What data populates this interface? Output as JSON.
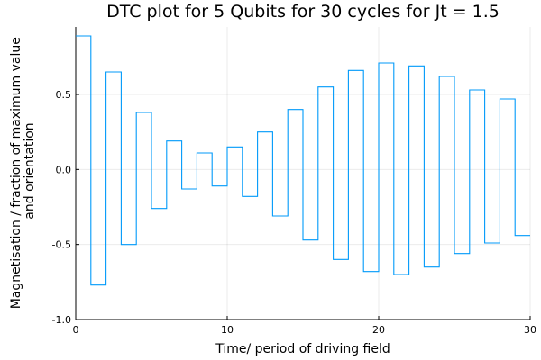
{
  "chart_data": {
    "type": "line",
    "step": "post",
    "title": "DTC plot for 5 Qubits for 30 cycles for Jt = 1.5",
    "xlabel": "Time/ period of driving field",
    "ylabel_lines": [
      "Magnetisation / fraction of maximum value",
      "and orientation"
    ],
    "xlim": [
      0,
      30
    ],
    "ylim": [
      -1.0,
      0.95
    ],
    "xticks": [
      0,
      10,
      20,
      30
    ],
    "xtick_labels": [
      "0",
      "10",
      "20",
      "30"
    ],
    "yticks": [
      -1.0,
      -0.5,
      0.0,
      0.5
    ],
    "ytick_labels": [
      "-1.0",
      "-0.5",
      "0.0",
      "0.5"
    ],
    "grid": true,
    "legend": "none",
    "series": [
      {
        "color": "#009AFA",
        "x": [
          0,
          1,
          2,
          3,
          4,
          5,
          6,
          7,
          8,
          9,
          10,
          11,
          12,
          13,
          14,
          15,
          16,
          17,
          18,
          19,
          20,
          21,
          22,
          23,
          24,
          25,
          26,
          27,
          28,
          29,
          30
        ],
        "y": [
          0.89,
          -0.77,
          0.65,
          -0.5,
          0.38,
          -0.26,
          0.19,
          -0.13,
          0.11,
          -0.11,
          0.15,
          -0.18,
          0.25,
          -0.31,
          0.4,
          -0.47,
          0.55,
          -0.6,
          0.66,
          -0.68,
          0.71,
          -0.7,
          0.69,
          -0.65,
          0.62,
          -0.56,
          0.53,
          -0.49,
          0.47,
          -0.44,
          -0.44
        ]
      }
    ]
  }
}
